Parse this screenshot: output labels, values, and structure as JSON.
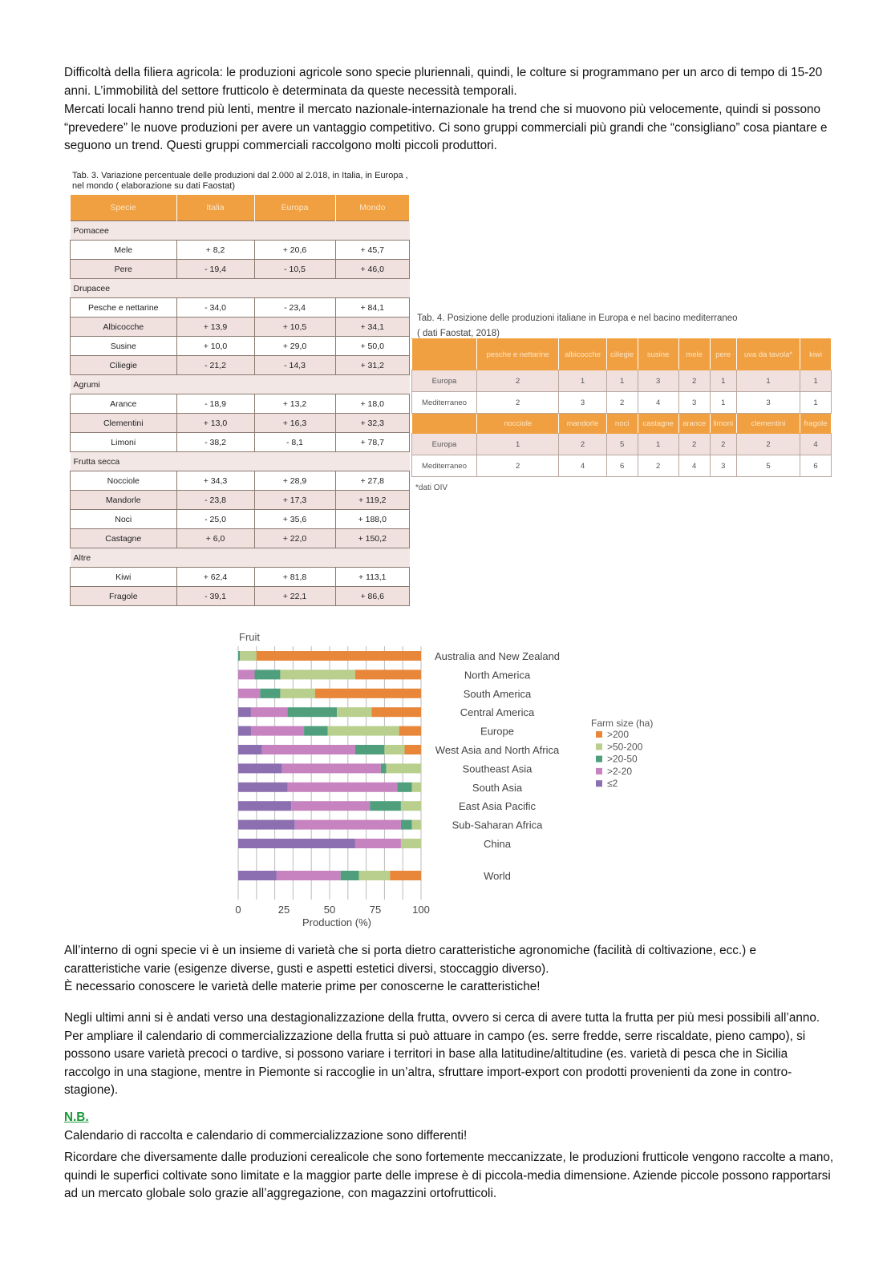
{
  "paragraphs": {
    "p1": "Difficoltà della filiera agricola: le produzioni agricole sono specie pluriennali, quindi, le colture si programmano per un arco di tempo di 15-20 anni. L’immobilità del settore frutticolo è determinata da queste necessità temporali.",
    "p2": "Mercati locali hanno trend più lenti, mentre il mercato nazionale-internazionale ha trend che si muovono più velocemente, quindi si possono “prevedere” le nuove produzioni per avere un vantaggio competitivo. Ci sono gruppi commerciali più grandi che “consigliano” cosa piantare e seguono un trend. Questi gruppi commerciali raccolgono molti piccoli produttori.",
    "p3": "All’interno di ogni specie vi è un insieme di varietà che si porta dietro caratteristiche agronomiche (facilità di coltivazione, ecc.) e caratteristiche varie (esigenze diverse, gusti e aspetti estetici diversi, stoccaggio diverso).",
    "p4": "È necessario conoscere le varietà delle materie prime per conoscerne le caratteristiche!",
    "p5": "Negli ultimi anni si è andati verso una destagionalizzazione della frutta, ovvero si cerca di avere tutta la frutta per più mesi possibili all’anno. Per ampliare il calendario di commercializzazione della frutta si può attuare in campo (es. serre fredde, serre riscaldate, pieno campo), si possono usare varietà precoci o tardive, si possono variare i territori in base alla latitudine/altitudine (es. varietà di pesca che in Sicilia raccolgo in una stagione, mentre in Piemonte si raccoglie in un’altra, sfruttare import-export con prodotti provenienti da zone in contro-stagione).",
    "nb": "N.B.",
    "p6": "Calendario di raccolta e calendario di commercializzazione sono differenti!",
    "p7": "Ricordare che diversamente dalle produzioni cerealicole che sono fortemente meccanizzate, le produzioni frutticole vengono raccolte a mano, quindi le superfici coltivate sono limitate e la maggior parte delle imprese è di piccola-media dimensione. Aziende piccole possono rapportarsi ad un mercato globale solo grazie all’aggregazione, con magazzini ortofrutticoli."
  },
  "tab3": {
    "caption": "Tab. 3. Variazione percentuale delle produzioni dal 2.000 al 2.018, in Italia, in Europa , nel mondo ( elaborazione su dati Faostat)",
    "headers": [
      "Specie",
      "Italia",
      "Europa",
      "Mondo"
    ],
    "groups": [
      {
        "name": "Pomacee",
        "rows": [
          [
            "Mele",
            "+ 8,2",
            "+ 20,6",
            "+ 45,7"
          ],
          [
            "Pere",
            "- 19,4",
            "- 10,5",
            "+ 46,0"
          ]
        ]
      },
      {
        "name": "Drupacee",
        "rows": [
          [
            "Pesche e nettarine",
            "- 34,0",
            "- 23,4",
            "+ 84,1"
          ],
          [
            "Albicocche",
            "+ 13,9",
            "+ 10,5",
            "+ 34,1"
          ],
          [
            "Susine",
            "+ 10,0",
            "+ 29,0",
            "+ 50,0"
          ],
          [
            "Ciliegie",
            "- 21,2",
            "- 14,3",
            "+ 31,2"
          ]
        ]
      },
      {
        "name": "Agrumi",
        "rows": [
          [
            "Arance",
            "- 18,9",
            "+ 13,2",
            "+ 18,0"
          ],
          [
            "Clementini",
            "+ 13,0",
            "+ 16,3",
            "+ 32,3"
          ],
          [
            "Limoni",
            "- 38,2",
            "- 8,1",
            "+ 78,7"
          ]
        ]
      },
      {
        "name": "Frutta secca",
        "rows": [
          [
            "Nocciole",
            "+ 34,3",
            "+ 28,9",
            "+ 27,8"
          ],
          [
            "Mandorle",
            "- 23,8",
            "+ 17,3",
            "+ 119,2"
          ],
          [
            "Noci",
            "- 25,0",
            "+ 35,6",
            "+ 188,0"
          ],
          [
            "Castagne",
            "+ 6,0",
            "+ 22,0",
            "+ 150,2"
          ]
        ]
      },
      {
        "name": "Altre",
        "rows": [
          [
            "Kiwi",
            "+ 62,4",
            "+ 81,8",
            "+ 113,1"
          ],
          [
            "Fragole",
            "- 39,1",
            "+ 22,1",
            "+ 86,6"
          ]
        ]
      }
    ]
  },
  "tab4": {
    "caption1": "Tab. 4. Posizione delle produzioni italiane in Europa e nel bacino mediterraneo",
    "caption2": "( dati Faostat, 2018)",
    "blocks": [
      {
        "headers": [
          "pesche e nettarine",
          "albicocche",
          "ciliegie",
          "susine",
          "mele",
          "pere",
          "uva da tavola*",
          "kiwi"
        ],
        "rows": [
          {
            "label": "Europa",
            "values": [
              "2",
              "1",
              "1",
              "3",
              "2",
              "1",
              "1",
              "1"
            ]
          },
          {
            "label": "Mediterraneo",
            "values": [
              "2",
              "3",
              "2",
              "4",
              "3",
              "1",
              "3",
              "1"
            ]
          }
        ]
      },
      {
        "headers": [
          "nocciole",
          "mandorle",
          "noci",
          "castagne",
          "arance",
          "limoni",
          "clementini",
          "fragole"
        ],
        "rows": [
          {
            "label": "Europa",
            "values": [
              "1",
              "2",
              "5",
              "1",
              "2",
              "2",
              "2",
              "4"
            ]
          },
          {
            "label": "Mediterraneo",
            "values": [
              "2",
              "4",
              "6",
              "2",
              "4",
              "3",
              "5",
              "6"
            ]
          }
        ]
      }
    ],
    "note": "*dati OIV"
  },
  "chart_data": {
    "type": "bar",
    "stacked": true,
    "orientation": "horizontal",
    "title": "Fruit",
    "xlabel": "Production (%)",
    "xlim": [
      0,
      100
    ],
    "xticks": [
      "0",
      "25",
      "50",
      "75",
      "100"
    ],
    "categories": [
      "Australia and New Zealand",
      "North America",
      "South America",
      "Central America",
      "Europe",
      "West Asia and North Africa",
      "Southeast Asia",
      "South Asia",
      "East Asia Pacific",
      "Sub-Saharan Africa",
      "China",
      "World"
    ],
    "legend_title": "Farm size (ha)",
    "legend_position": "right",
    "series": [
      {
        "name": "≤2",
        "color": "#8c6fb0",
        "values": [
          0,
          0,
          0,
          7,
          7,
          13,
          24,
          27,
          29,
          31,
          64,
          21
        ]
      },
      {
        "name": ">2-20",
        "color": "#c683c0",
        "values": [
          0,
          9,
          12,
          20,
          29,
          51,
          54,
          60,
          43,
          58,
          25,
          35
        ]
      },
      {
        "name": ">20-50",
        "color": "#4f9f7d",
        "values": [
          1,
          14,
          11,
          27,
          13,
          16,
          3,
          8,
          17,
          6,
          0,
          10
        ]
      },
      {
        "name": ">50-200",
        "color": "#b9cf8e",
        "values": [
          9,
          41,
          19,
          19,
          39,
          11,
          19,
          5,
          11,
          5,
          11,
          17
        ]
      },
      {
        "name": ">200",
        "color": "#e8873a",
        "values": [
          90,
          36,
          58,
          27,
          12,
          9,
          0,
          0,
          0,
          0,
          0,
          17
        ]
      }
    ]
  }
}
